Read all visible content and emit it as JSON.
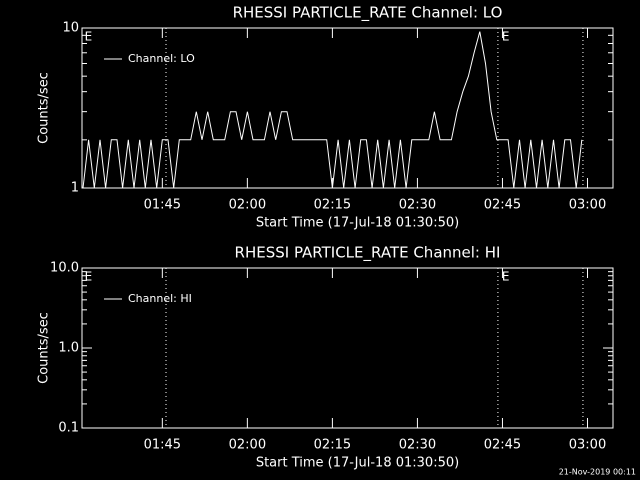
{
  "chart_data": [
    {
      "type": "line",
      "title": "RHESSI PARTICLE_RATE Channel: LO",
      "x_label": "Start Time (17-Jul-18 01:30:50)",
      "y_label": "Counts/sec",
      "log_y": true,
      "ylim": [
        1,
        10
      ],
      "yticks": [
        1,
        10
      ],
      "xlim": [
        90.83,
        184.5
      ],
      "xticks": [
        {
          "value": 105,
          "label": "01:45"
        },
        {
          "value": 120,
          "label": "02:00"
        },
        {
          "value": 135,
          "label": "02:15"
        },
        {
          "value": 150,
          "label": "02:30"
        },
        {
          "value": 165,
          "label": "02:45"
        },
        {
          "value": 180,
          "label": "03:00"
        }
      ],
      "event_lines": [
        105.65,
        164.2,
        179.2
      ],
      "annotations": [
        {
          "text": "E",
          "x": 91.3
        },
        {
          "text": "E",
          "x": 164.9
        }
      ],
      "x": [
        91,
        92,
        93,
        94,
        95,
        96,
        97,
        98,
        99,
        100,
        101,
        102,
        103,
        104,
        105,
        106,
        107,
        108,
        109,
        110,
        111,
        112,
        113,
        114,
        115,
        116,
        117,
        118,
        119,
        120,
        121,
        122,
        123,
        124,
        125,
        126,
        127,
        128,
        129,
        130,
        131,
        132,
        133,
        134,
        135,
        136,
        137,
        138,
        139,
        140,
        141,
        142,
        143,
        144,
        145,
        146,
        147,
        148,
        149,
        150,
        151,
        152,
        153,
        154,
        155,
        156,
        157,
        158,
        159,
        160,
        161,
        162,
        163,
        164,
        165,
        166,
        167,
        168,
        169,
        170,
        171,
        172,
        173,
        174,
        175,
        176,
        177,
        178,
        179
      ],
      "series": [
        {
          "name": "Channel: LO",
          "color": "#ffffff",
          "values": [
            1,
            2,
            1,
            2,
            1,
            2,
            2,
            1,
            2,
            1,
            2,
            1,
            2,
            1,
            2,
            2,
            1,
            2,
            2,
            2,
            3,
            2,
            3,
            2,
            2,
            2,
            3,
            3,
            2,
            3,
            2,
            2,
            2,
            3,
            2,
            3,
            3,
            2,
            2,
            2,
            2,
            2,
            2,
            2,
            1,
            2,
            1,
            2,
            1,
            2,
            2,
            1,
            2,
            1,
            2,
            1,
            2,
            1,
            2,
            2,
            2,
            2,
            3,
            2,
            2,
            2,
            3,
            4,
            5,
            7,
            9.5,
            6,
            3,
            2,
            2,
            2,
            1,
            2,
            1,
            2,
            1,
            2,
            1,
            2,
            1,
            2,
            2,
            1,
            2
          ]
        }
      ]
    },
    {
      "type": "line",
      "title": "RHESSI PARTICLE_RATE Channel: HI",
      "x_label": "Start Time (17-Jul-18 01:30:50)",
      "y_label": "Counts/sec",
      "log_y": true,
      "ylim": [
        0.1,
        10
      ],
      "yticks": [
        0.1,
        {
          "value": 1,
          "label": "1.0"
        },
        {
          "value": 10,
          "label": "10.0"
        }
      ],
      "xlim": [
        90.83,
        184.5
      ],
      "xticks": [
        {
          "value": 105,
          "label": "01:45"
        },
        {
          "value": 120,
          "label": "02:00"
        },
        {
          "value": 135,
          "label": "02:15"
        },
        {
          "value": 150,
          "label": "02:30"
        },
        {
          "value": 165,
          "label": "02:45"
        },
        {
          "value": 180,
          "label": "03:00"
        }
      ],
      "event_lines": [
        105.65,
        164.2,
        179.2
      ],
      "annotations": [
        {
          "text": "E",
          "x": 91.3
        },
        {
          "text": "E",
          "x": 164.9
        }
      ],
      "x": [],
      "series": [
        {
          "name": "Channel: HI",
          "color": "#ffffff",
          "values": []
        }
      ]
    }
  ],
  "footer": "21-Nov-2019 00:11"
}
